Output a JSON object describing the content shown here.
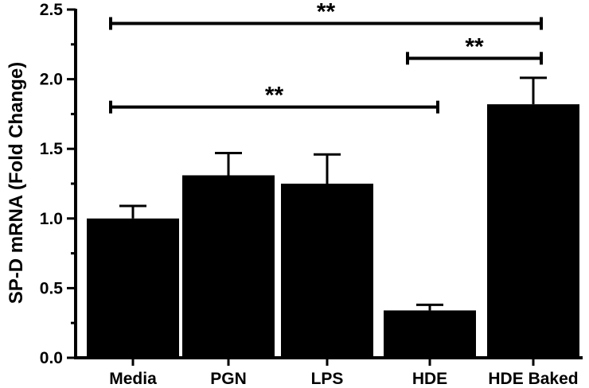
{
  "chart_data": {
    "type": "bar",
    "title": "",
    "xlabel": "",
    "ylabel": "SP-D mRNA (Fold Change)",
    "ylim": [
      0,
      2.5
    ],
    "yticks": [
      "0.0",
      "0.5",
      "1.0",
      "1.5",
      "2.0",
      "2.5"
    ],
    "categories": [
      "Media",
      "PGN",
      "LPS",
      "HDE",
      "HDE Baked"
    ],
    "values": [
      1.0,
      1.31,
      1.25,
      0.34,
      1.82
    ],
    "errors": [
      0.09,
      0.16,
      0.21,
      0.04,
      0.19
    ],
    "bar_color": "#000000",
    "grid": false,
    "significance": [
      {
        "from": "Media",
        "to": "HDE Baked",
        "label": "**",
        "y": 2.4
      },
      {
        "from": "HDE",
        "to": "HDE Baked",
        "label": "**",
        "y": 2.15
      },
      {
        "from": "Media",
        "to": "HDE",
        "label": "**",
        "y": 1.8
      }
    ]
  }
}
